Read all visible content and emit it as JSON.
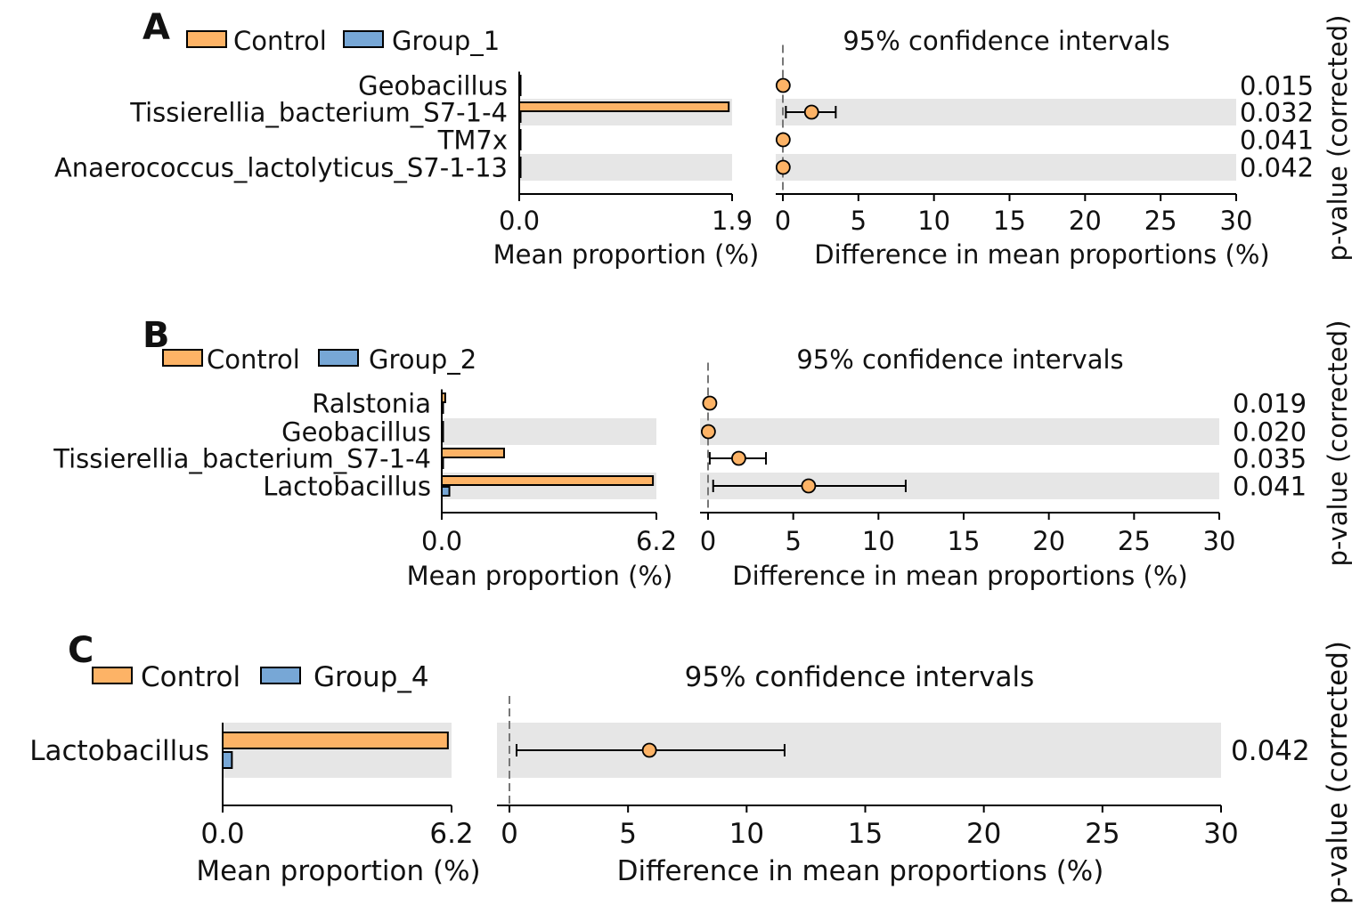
{
  "colors": {
    "control": "#FDB366",
    "group": "#77A7D6",
    "band": "#E6E6E6",
    "axis": "#000000",
    "zero_line": "#777777"
  },
  "chart_data": [
    {
      "panel_label": "A",
      "type": "bar",
      "legend": {
        "control": "Control",
        "group": "Group_1"
      },
      "ci_title": "95% confidence intervals",
      "categories": [
        "Geobacillus",
        "Tissierellia_bacterium_S7-1-4",
        "TM7x",
        "Anaerococcus_lactolyticus_S7-1-13"
      ],
      "series": [
        {
          "name": "Control",
          "values": [
            0.01,
            1.87,
            0.01,
            0.01
          ]
        },
        {
          "name": "Group_1",
          "values": [
            0.0,
            0.0,
            0.0,
            0.0
          ]
        }
      ],
      "bar_xlim": [
        0,
        1.9
      ],
      "bar_ticks": [
        "0.0",
        "1.9"
      ],
      "bar_xlabel": "Mean proportion (%)",
      "ci": {
        "diff": [
          0.02,
          1.9,
          0.02,
          0.02
        ],
        "low": [
          0.0,
          0.2,
          0.0,
          0.0
        ],
        "high": [
          0.04,
          3.5,
          0.04,
          0.04
        ]
      },
      "ci_xlim": [
        0,
        30
      ],
      "ci_ticks": [
        "0",
        "5",
        "10",
        "15",
        "20",
        "25",
        "30"
      ],
      "ci_xlabel": "Difference in mean proportions (%)",
      "p_values": [
        "0.015",
        "0.032",
        "0.041",
        "0.042"
      ],
      "p_label": "p-value (corrected)"
    },
    {
      "panel_label": "B",
      "type": "bar",
      "legend": {
        "control": "Control",
        "group": "Group_2"
      },
      "ci_title": "95% confidence intervals",
      "categories": [
        "Ralstonia",
        "Geobacillus",
        "Tissierellia_bacterium_S7-1-4",
        "Lactobacillus"
      ],
      "series": [
        {
          "name": "Control",
          "values": [
            0.1,
            0.02,
            1.8,
            6.1
          ]
        },
        {
          "name": "Group_2",
          "values": [
            0.0,
            0.0,
            0.0,
            0.22
          ]
        }
      ],
      "bar_xlim": [
        0,
        6.2
      ],
      "bar_ticks": [
        "0.0",
        "6.2"
      ],
      "bar_xlabel": "Mean proportion (%)",
      "ci": {
        "diff": [
          0.1,
          0.02,
          1.8,
          5.9
        ],
        "low": [
          0.0,
          0.0,
          0.1,
          0.3
        ],
        "high": [
          0.2,
          0.04,
          3.4,
          11.6
        ]
      },
      "ci_xlim": [
        0,
        30
      ],
      "ci_ticks": [
        "0",
        "5",
        "10",
        "15",
        "20",
        "25",
        "30"
      ],
      "ci_xlabel": "Difference in mean proportions (%)",
      "p_values": [
        "0.019",
        "0.020",
        "0.035",
        "0.041"
      ],
      "p_label": "p-value (corrected)"
    },
    {
      "panel_label": "C",
      "type": "bar",
      "legend": {
        "control": "Control",
        "group": "Group_4"
      },
      "ci_title": "95% confidence intervals",
      "categories": [
        "Lactobacillus"
      ],
      "series": [
        {
          "name": "Control",
          "values": [
            6.1
          ]
        },
        {
          "name": "Group_4",
          "values": [
            0.25
          ]
        }
      ],
      "bar_xlim": [
        0,
        6.2
      ],
      "bar_ticks": [
        "0.0",
        "6.2"
      ],
      "bar_xlabel": "Mean proportion (%)",
      "ci": {
        "diff": [
          5.9
        ],
        "low": [
          0.3
        ],
        "high": [
          11.6
        ]
      },
      "ci_xlim": [
        0,
        30
      ],
      "ci_ticks": [
        "0",
        "5",
        "10",
        "15",
        "20",
        "25",
        "30"
      ],
      "ci_xlabel": "Difference in mean proportions (%)",
      "p_values": [
        "0.042"
      ],
      "p_label": "p-value (corrected)"
    }
  ]
}
